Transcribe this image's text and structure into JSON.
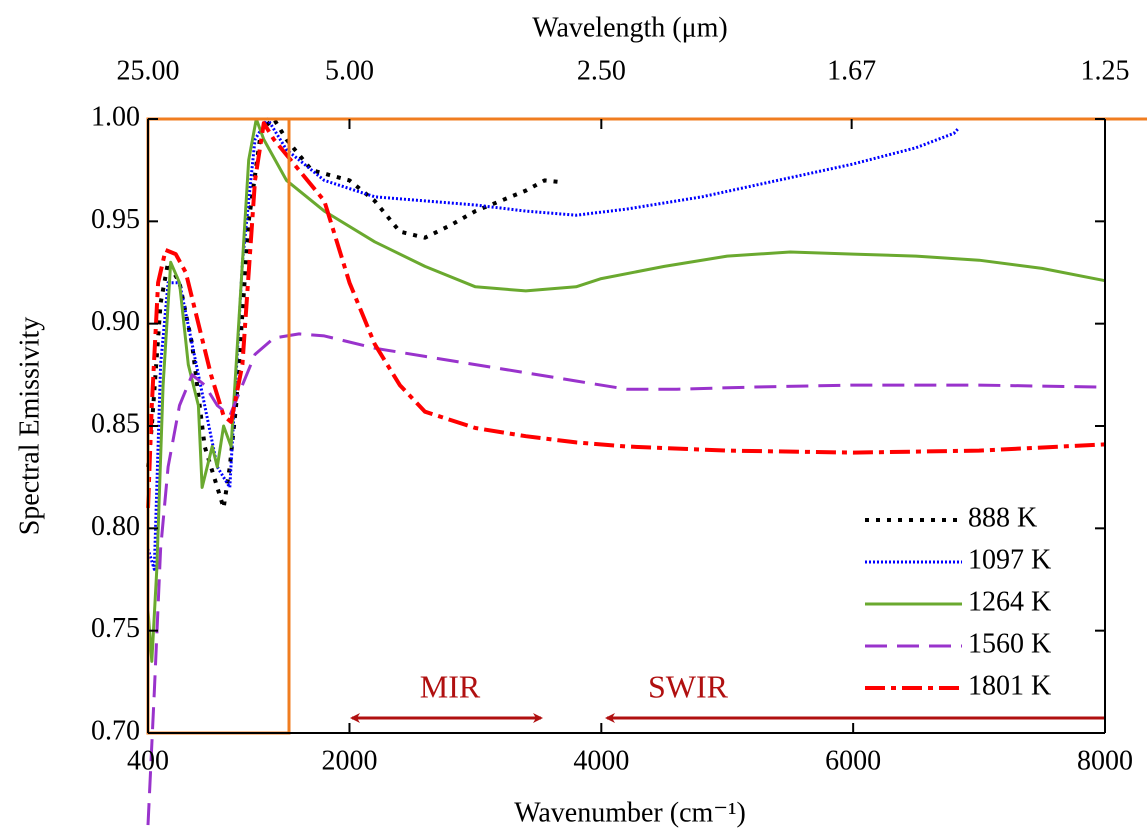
{
  "chart_data": {
    "type": "line",
    "x2label": "Wavelength (μm)",
    "xlabel": "Wavenumber (cm⁻¹)",
    "ylabel": "Spectral Emissivity",
    "xlim": [
      400,
      8000
    ],
    "ylim": [
      0.7,
      1.0
    ],
    "xticks": [
      400,
      2000,
      4000,
      6000,
      8000
    ],
    "yticks": [
      {
        "value": 0.7,
        "label": "0.70"
      },
      {
        "value": 0.75,
        "label": "0.75"
      },
      {
        "value": 0.8,
        "label": "0.80"
      },
      {
        "value": 0.85,
        "label": "0.85"
      },
      {
        "value": 0.9,
        "label": "0.90"
      },
      {
        "value": 0.95,
        "label": "0.95"
      },
      {
        "value": 1.0,
        "label": "1.00"
      }
    ],
    "x2ticks": [
      {
        "value": 25,
        "label": "25.00"
      },
      {
        "value": 5,
        "label": "5.00"
      },
      {
        "value": 2.5,
        "label": "2.50"
      },
      {
        "value": 1.67,
        "label": "1.67"
      },
      {
        "value": 1.25,
        "label": "1.25"
      }
    ],
    "legend": "lower right",
    "annotations": [
      "MIR",
      "SWIR"
    ],
    "series": [
      {
        "name": "888 K",
        "color": "#000000",
        "dash": "dotted",
        "x": [
          400,
          430,
          500,
          560,
          650,
          750,
          850,
          950,
          1000,
          1050,
          1100,
          1200,
          1300,
          1400,
          1500,
          1700,
          2000,
          2200,
          2400,
          2600,
          2800,
          3000,
          3200,
          3400,
          3550,
          3700
        ],
        "values": [
          0.83,
          0.85,
          0.91,
          0.93,
          0.92,
          0.89,
          0.84,
          0.82,
          0.81,
          0.83,
          0.86,
          0.95,
          0.995,
          1.0,
          0.99,
          0.975,
          0.97,
          0.96,
          0.945,
          0.942,
          0.948,
          0.955,
          0.96,
          0.965,
          0.97,
          0.969
        ]
      },
      {
        "name": "1097 K",
        "color": "#0000ff",
        "dash": "dense-dotted",
        "x": [
          400,
          450,
          500,
          560,
          650,
          750,
          850,
          950,
          1050,
          1150,
          1250,
          1350,
          1500,
          1800,
          2200,
          2600,
          3000,
          3400,
          3800,
          4200,
          4800,
          5400,
          6000,
          6500,
          6800,
          6830
        ],
        "values": [
          0.79,
          0.78,
          0.88,
          0.92,
          0.92,
          0.89,
          0.86,
          0.83,
          0.82,
          0.93,
          0.99,
          1.0,
          0.985,
          0.97,
          0.962,
          0.96,
          0.958,
          0.955,
          0.953,
          0.956,
          0.962,
          0.97,
          0.978,
          0.986,
          0.993,
          0.995
        ]
      },
      {
        "name": "1264 K",
        "color": "#6aa92f",
        "dash": "solid",
        "x": [
          400,
          430,
          470,
          520,
          580,
          650,
          720,
          800,
          830,
          870,
          910,
          950,
          1000,
          1060,
          1120,
          1200,
          1260,
          1320,
          1500,
          1800,
          2200,
          2600,
          3000,
          3400,
          3800,
          4000,
          4500,
          5000,
          5500,
          6000,
          6500,
          7000,
          7500,
          8000
        ],
        "values": [
          0.76,
          0.735,
          0.78,
          0.87,
          0.93,
          0.92,
          0.88,
          0.86,
          0.82,
          0.83,
          0.84,
          0.83,
          0.85,
          0.84,
          0.9,
          0.98,
          1.0,
          0.99,
          0.97,
          0.955,
          0.94,
          0.928,
          0.918,
          0.916,
          0.918,
          0.922,
          0.928,
          0.933,
          0.935,
          0.934,
          0.933,
          0.931,
          0.927,
          0.921
        ]
      },
      {
        "name": "1560 K",
        "color": "#9933cc",
        "dash": "dashed",
        "x": [
          400,
          450,
          500,
          560,
          650,
          750,
          850,
          950,
          1050,
          1150,
          1250,
          1400,
          1600,
          1800,
          2200,
          2600,
          3000,
          3400,
          3800,
          4200,
          4600,
          5200,
          6000,
          7000,
          8000
        ],
        "values": [
          0.655,
          0.72,
          0.79,
          0.83,
          0.86,
          0.875,
          0.87,
          0.86,
          0.855,
          0.87,
          0.885,
          0.893,
          0.895,
          0.894,
          0.888,
          0.884,
          0.88,
          0.876,
          0.872,
          0.868,
          0.868,
          0.869,
          0.87,
          0.87,
          0.869
        ]
      },
      {
        "name": "1801 K",
        "color": "#ff0000",
        "dash": "dash-dot",
        "x": [
          400,
          430,
          480,
          540,
          620,
          700,
          800,
          900,
          1000,
          1060,
          1150,
          1250,
          1320,
          1400,
          1600,
          1800,
          2000,
          2200,
          2400,
          2600,
          3000,
          3400,
          3800,
          4200,
          5000,
          6000,
          7000,
          8000
        ],
        "values": [
          0.81,
          0.86,
          0.92,
          0.936,
          0.934,
          0.925,
          0.9,
          0.875,
          0.855,
          0.852,
          0.88,
          0.97,
          0.998,
          0.99,
          0.975,
          0.96,
          0.92,
          0.89,
          0.87,
          0.857,
          0.849,
          0.845,
          0.842,
          0.84,
          0.838,
          0.837,
          0.838,
          0.841
        ]
      }
    ]
  }
}
